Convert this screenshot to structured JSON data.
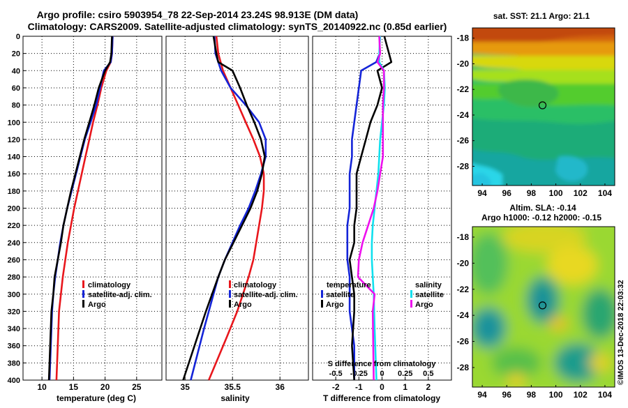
{
  "header": {
    "title_line1": "Argo profile: csiro 5903954_78 22-Sep-2014 23.24S 98.913E (DM data)",
    "title_line2": "Climatology: CARS2009. Satellite-adjusted climatology: synTS_20140922.nc (0.85d earlier)"
  },
  "colors": {
    "climatology": "#e8161c",
    "satellite_adj": "#1424d8",
    "argo": "#000000",
    "satellite": "#10e0ee",
    "salinity_argo": "#ee10ee"
  },
  "footer": {
    "credit": "©IMOS 13-Dec-2018 22:03:32"
  },
  "chart_data": [
    {
      "type": "line",
      "id": "temperature",
      "xlabel": "temperature (deg C)",
      "ylabel": "",
      "xlim": [
        7,
        29
      ],
      "ylim": [
        0,
        400
      ],
      "y_inverted": true,
      "xticks": [
        10,
        15,
        20,
        25
      ],
      "yticks": [
        0,
        20,
        40,
        60,
        80,
        100,
        120,
        140,
        160,
        180,
        200,
        220,
        240,
        260,
        280,
        300,
        320,
        340,
        360,
        380,
        400
      ],
      "grid": true,
      "legend": {
        "placement": "bottom-right",
        "entries": [
          "climatology",
          "satellite-adj. clim.",
          "Argo"
        ]
      },
      "series": [
        {
          "name": "climatology",
          "color": "#e8161c",
          "x": [
            21.2,
            21.1,
            20.9,
            20.2,
            19.4,
            18.8,
            18.1,
            17.5,
            16.9,
            16.3,
            15.7,
            15.1,
            14.6,
            14.1,
            13.7,
            13.3,
            13.0,
            12.7,
            12.5,
            12.3
          ],
          "y": [
            0,
            20,
            30,
            40,
            60,
            80,
            100,
            120,
            140,
            160,
            180,
            200,
            220,
            240,
            260,
            280,
            300,
            320,
            360,
            400
          ]
        },
        {
          "name": "satellite-adj. clim.",
          "color": "#1424d8",
          "x": [
            21.2,
            21.1,
            20.9,
            19.8,
            19.2,
            18.6,
            17.7,
            16.8,
            16.1,
            15.4,
            14.7,
            14.0,
            13.4,
            12.9,
            12.5,
            12.1,
            11.8,
            11.6,
            11.4,
            11.2
          ],
          "y": [
            0,
            20,
            30,
            40,
            60,
            80,
            100,
            120,
            140,
            160,
            180,
            200,
            220,
            240,
            260,
            280,
            300,
            320,
            360,
            400
          ]
        },
        {
          "name": "Argo",
          "color": "#000000",
          "x": [
            21.1,
            21.0,
            20.8,
            20.0,
            19.0,
            18.3,
            17.5,
            16.7,
            16.0,
            15.3,
            14.6,
            14.0,
            13.4,
            13.0,
            12.5,
            12.0,
            11.8,
            11.5,
            11.3,
            11.1
          ],
          "y": [
            0,
            20,
            30,
            40,
            60,
            80,
            100,
            120,
            140,
            160,
            180,
            200,
            220,
            240,
            260,
            280,
            300,
            320,
            360,
            400
          ]
        }
      ]
    },
    {
      "type": "line",
      "id": "salinity",
      "xlabel": "salinity",
      "ylabel": "",
      "xlim": [
        34.8,
        36.3
      ],
      "ylim": [
        0,
        400
      ],
      "y_inverted": true,
      "xticks": [
        35,
        35.5,
        36
      ],
      "xtick_labels": [
        "35",
        "35.5",
        "36"
      ],
      "grid": true,
      "legend": {
        "placement": "bottom-right",
        "entries": [
          "climatology",
          "satellite-adj. clim.",
          "Argo"
        ]
      },
      "series": [
        {
          "name": "climatology",
          "color": "#e8161c",
          "x": [
            35.33,
            35.35,
            35.4,
            35.48,
            35.56,
            35.64,
            35.72,
            35.79,
            35.83,
            35.83,
            35.81,
            35.78,
            35.75,
            35.72,
            35.67,
            35.61,
            35.55,
            35.44,
            35.25
          ],
          "y": [
            0,
            20,
            40,
            60,
            80,
            100,
            120,
            140,
            160,
            180,
            200,
            220,
            240,
            260,
            280,
            300,
            320,
            350,
            400
          ]
        },
        {
          "name": "satellite-adj. clim.",
          "color": "#1424d8",
          "x": [
            35.31,
            35.32,
            35.35,
            35.38,
            35.48,
            35.64,
            35.78,
            35.85,
            35.85,
            35.8,
            35.74,
            35.67,
            35.58,
            35.5,
            35.42,
            35.35,
            35.3,
            35.2,
            35.06
          ],
          "y": [
            0,
            20,
            30,
            40,
            60,
            80,
            100,
            120,
            140,
            160,
            180,
            200,
            220,
            240,
            260,
            280,
            300,
            340,
            400
          ]
        },
        {
          "name": "Argo",
          "color": "#000000",
          "x": [
            35.3,
            35.33,
            35.35,
            35.5,
            35.58,
            35.65,
            35.73,
            35.8,
            35.84,
            35.81,
            35.76,
            35.69,
            35.6,
            35.51,
            35.42,
            35.35,
            35.22,
            35.1,
            34.98
          ],
          "y": [
            0,
            20,
            30,
            40,
            60,
            80,
            100,
            120,
            140,
            160,
            180,
            200,
            220,
            240,
            260,
            280,
            320,
            360,
            400
          ]
        }
      ]
    },
    {
      "type": "line",
      "id": "difference",
      "xlabel": "T difference from climatology",
      "x2label": "S difference from climatology",
      "ylabel": "",
      "xlim": [
        -3,
        3
      ],
      "ylim": [
        0,
        400
      ],
      "y_inverted": true,
      "xticks": [
        -2,
        -1,
        0,
        1,
        2
      ],
      "x2lim": [
        -0.75,
        0.75
      ],
      "x2ticks": [
        -0.5,
        -0.25,
        0,
        0.25,
        0.5
      ],
      "x2tick_labels": [
        "-0.5",
        "-0.25",
        "0",
        "0.25",
        "0.5"
      ],
      "grid": true,
      "legend_temperature": {
        "title": "temperature",
        "entries": [
          "satellite",
          "Argo"
        ]
      },
      "legend_salinity": {
        "title": "salinity",
        "entries": [
          "satellite",
          "Argo"
        ]
      },
      "series": [
        {
          "name": "temperature satellite",
          "color": "#1424d8",
          "x": [
            -0.1,
            -0.1,
            -0.25,
            -0.9,
            -1.0,
            -1.1,
            -1.2,
            -1.3,
            -1.3,
            -1.4,
            -1.4,
            -1.4,
            -1.5,
            -1.5,
            -1.5,
            -1.4,
            -1.4,
            -1.4,
            -1.2,
            -1.2
          ],
          "y": [
            0,
            20,
            30,
            40,
            60,
            80,
            100,
            120,
            140,
            160,
            180,
            200,
            220,
            240,
            260,
            280,
            300,
            320,
            360,
            400
          ]
        },
        {
          "name": "temperature Argo",
          "color": "#000000",
          "x": [
            0.1,
            0.3,
            0.4,
            -0.2,
            0.0,
            -0.2,
            -0.5,
            -0.7,
            -0.9,
            -1.1,
            -1.1,
            -1.1,
            -1.2,
            -1.2,
            -1.4,
            -1.3,
            -1.2,
            -1.2,
            -1.3,
            -1.2
          ],
          "y": [
            0,
            20,
            30,
            40,
            60,
            80,
            100,
            120,
            140,
            160,
            180,
            200,
            220,
            240,
            260,
            280,
            300,
            320,
            360,
            400
          ]
        },
        {
          "name": "salinity satellite",
          "color": "#10e0ee",
          "x": [
            -0.02,
            -0.03,
            -0.03,
            0.02,
            0.03,
            0.02,
            0.0,
            -0.02,
            -0.03,
            -0.04,
            -0.06,
            -0.08,
            -0.1,
            -0.11,
            -0.11,
            -0.1,
            -0.09,
            -0.08,
            -0.06
          ],
          "y": [
            0,
            20,
            30,
            40,
            60,
            80,
            100,
            120,
            140,
            160,
            180,
            200,
            220,
            240,
            260,
            280,
            300,
            340,
            400
          ]
        },
        {
          "name": "salinity Argo",
          "color": "#ee10ee",
          "x": [
            -0.03,
            -0.02,
            -0.05,
            0.02,
            0.02,
            0.01,
            0.01,
            0.01,
            0.01,
            -0.02,
            -0.05,
            -0.09,
            -0.15,
            -0.21,
            -0.25,
            -0.26,
            -0.08,
            -0.1,
            -0.09
          ],
          "y": [
            0,
            20,
            30,
            40,
            60,
            80,
            100,
            120,
            140,
            160,
            180,
            200,
            220,
            240,
            260,
            280,
            300,
            320,
            400
          ]
        }
      ]
    },
    {
      "type": "heatmap",
      "id": "sst_map",
      "title": "sat. SST: 21.1 Argo: 21.1",
      "xlim": [
        93.2,
        104.8
      ],
      "ylim": [
        -29.5,
        -17.2
      ],
      "xticks": [
        94,
        96,
        98,
        100,
        102,
        104
      ],
      "yticks": [
        -18,
        -20,
        -22,
        -24,
        -26,
        -28
      ],
      "marker": {
        "lon": 98.913,
        "lat": -23.24
      }
    },
    {
      "type": "heatmap",
      "id": "sla_map",
      "title": "Altim. SLA: -0.14",
      "subtitle": "Argo h1000: -0.12 h2000: -0.15",
      "xlim": [
        93.2,
        104.8
      ],
      "ylim": [
        -29.5,
        -17.2
      ],
      "xticks": [
        94,
        96,
        98,
        100,
        102,
        104
      ],
      "yticks": [
        -18,
        -20,
        -22,
        -24,
        -26,
        -28
      ],
      "marker": {
        "lon": 98.913,
        "lat": -23.24
      }
    }
  ]
}
